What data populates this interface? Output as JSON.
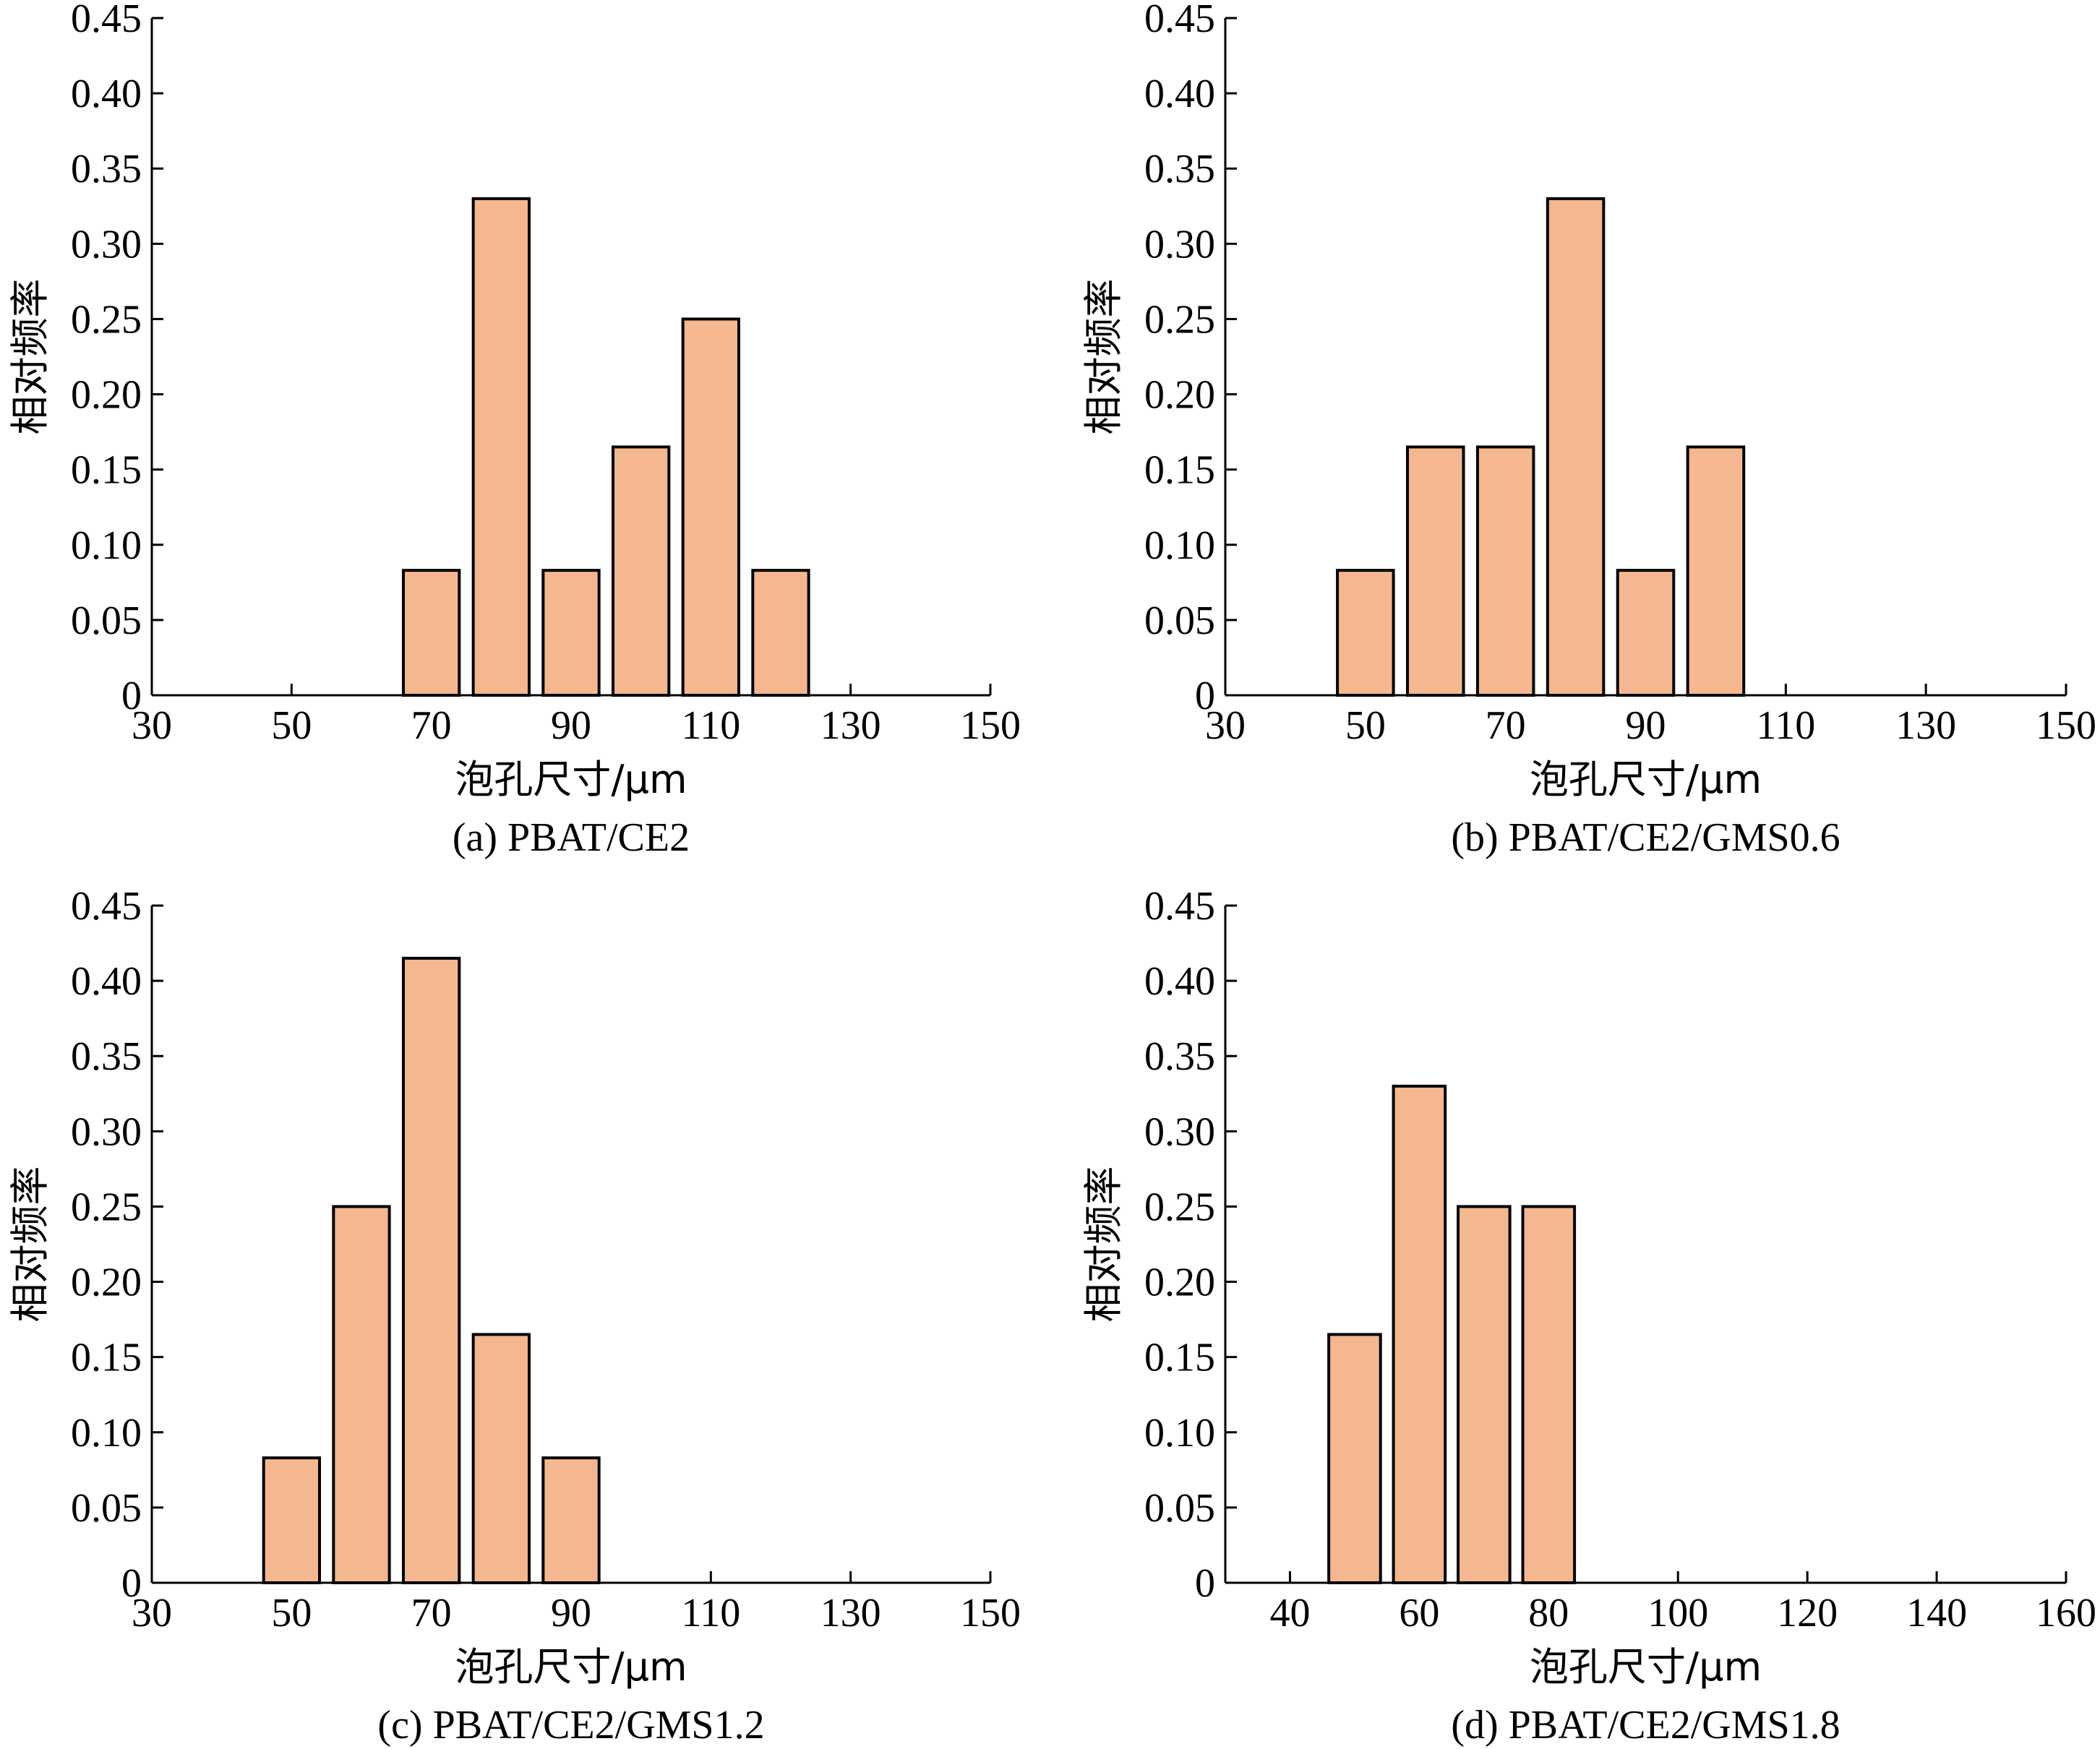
{
  "colors": {
    "bar_fill": "#F4B78F",
    "axis": "#000000"
  },
  "chart_data": [
    {
      "type": "bar",
      "caption": "(a) PBAT/CE2",
      "xlabel": "泡孔尺寸/μm",
      "ylabel": "相对频率",
      "xlim": [
        30,
        150
      ],
      "ylim": [
        0,
        0.45
      ],
      "xticks": [
        30,
        50,
        70,
        90,
        110,
        130,
        150
      ],
      "xtick_labels": [
        "30",
        "50",
        "70",
        "90",
        "110",
        "130",
        "150"
      ],
      "yticks": [
        0,
        0.05,
        0.1,
        0.15,
        0.2,
        0.25,
        0.3,
        0.35,
        0.4,
        0.45
      ],
      "ytick_labels": [
        "0",
        "0.05",
        "0.10",
        "0.15",
        "0.20",
        "0.25",
        "0.30",
        "0.35",
        "0.40",
        "0.45"
      ],
      "bin_width": 8,
      "x": [
        70,
        80,
        90,
        100,
        110,
        120
      ],
      "values": [
        0.083,
        0.33,
        0.083,
        0.165,
        0.25,
        0.083
      ]
    },
    {
      "type": "bar",
      "caption": "(b) PBAT/CE2/GMS0.6",
      "xlabel": "泡孔尺寸/μm",
      "ylabel": "相对频率",
      "xlim": [
        30,
        150
      ],
      "ylim": [
        0,
        0.45
      ],
      "xticks": [
        30,
        50,
        70,
        90,
        110,
        130,
        150
      ],
      "xtick_labels": [
        "30",
        "50",
        "70",
        "90",
        "110",
        "130",
        "150"
      ],
      "yticks": [
        0,
        0.05,
        0.1,
        0.15,
        0.2,
        0.25,
        0.3,
        0.35,
        0.4,
        0.45
      ],
      "ytick_labels": [
        "0",
        "0.05",
        "0.10",
        "0.15",
        "0.20",
        "0.25",
        "0.30",
        "0.35",
        "0.40",
        "0.45"
      ],
      "bin_width": 8,
      "x": [
        50,
        60,
        70,
        80,
        90,
        100
      ],
      "values": [
        0.083,
        0.165,
        0.165,
        0.33,
        0.083,
        0.165
      ]
    },
    {
      "type": "bar",
      "caption": "(c) PBAT/CE2/GMS1.2",
      "xlabel": "泡孔尺寸/μm",
      "ylabel": "相对频率",
      "xlim": [
        30,
        150
      ],
      "ylim": [
        0,
        0.45
      ],
      "xticks": [
        30,
        50,
        70,
        90,
        110,
        130,
        150
      ],
      "xtick_labels": [
        "30",
        "50",
        "70",
        "90",
        "110",
        "130",
        "150"
      ],
      "yticks": [
        0,
        0.05,
        0.1,
        0.15,
        0.2,
        0.25,
        0.3,
        0.35,
        0.4,
        0.45
      ],
      "ytick_labels": [
        "0",
        "0.05",
        "0.10",
        "0.15",
        "0.20",
        "0.25",
        "0.30",
        "0.35",
        "0.40",
        "0.45"
      ],
      "bin_width": 8,
      "x": [
        50,
        60,
        70,
        80,
        90
      ],
      "values": [
        0.083,
        0.25,
        0.415,
        0.165,
        0.083
      ]
    },
    {
      "type": "bar",
      "caption": "(d) PBAT/CE2/GMS1.8",
      "xlabel": "泡孔尺寸/μm",
      "ylabel": "相对频率",
      "xlim": [
        30,
        160
      ],
      "ylim": [
        0,
        0.45
      ],
      "xticks": [
        40,
        60,
        80,
        100,
        120,
        140,
        160
      ],
      "xtick_labels": [
        "40",
        "60",
        "80",
        "100",
        "120",
        "140",
        "160"
      ],
      "yticks": [
        0,
        0.05,
        0.1,
        0.15,
        0.2,
        0.25,
        0.3,
        0.35,
        0.4,
        0.45
      ],
      "ytick_labels": [
        "0",
        "0.05",
        "0.10",
        "0.15",
        "0.20",
        "0.25",
        "0.30",
        "0.35",
        "0.40",
        "0.45"
      ],
      "bin_width": 8,
      "x": [
        50,
        60,
        70,
        80
      ],
      "values": [
        0.165,
        0.33,
        0.25,
        0.25
      ]
    }
  ]
}
